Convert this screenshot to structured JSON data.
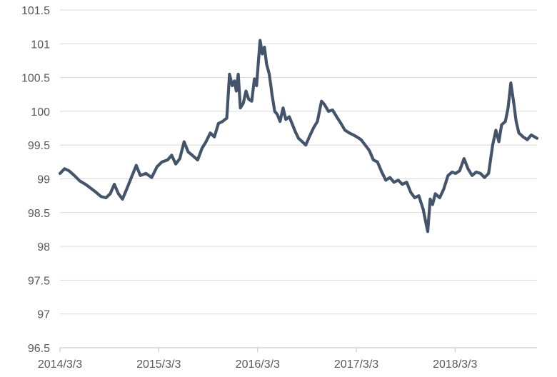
{
  "chart_data": {
    "type": "line",
    "title": "",
    "xlabel": "",
    "ylabel": "",
    "ylim": [
      96.5,
      101.5
    ],
    "y_ticks": [
      "96.5",
      "97",
      "97.5",
      "98",
      "98.5",
      "99",
      "99.5",
      "100",
      "100.5",
      "101",
      "101.5"
    ],
    "x_ticks": [
      {
        "label": "2014/3/3",
        "date": "2014-03-03"
      },
      {
        "label": "2015/3/3",
        "date": "2015-03-03"
      },
      {
        "label": "2016/3/3",
        "date": "2016-03-03"
      },
      {
        "label": "2017/3/3",
        "date": "2017-03-03"
      },
      {
        "label": "2018/3/3",
        "date": "2018-03-03"
      }
    ],
    "x_range": [
      "2014-03-03",
      "2018-12-31"
    ],
    "grid": "horizontal",
    "legend": "none",
    "colors": {
      "line": "#44546a",
      "grid": "#d9d9d9",
      "text": "#595959"
    },
    "series": [
      {
        "points": [
          [
            "2014-03-03",
            99.08
          ],
          [
            "2014-03-20",
            99.15
          ],
          [
            "2014-04-05",
            99.12
          ],
          [
            "2014-04-25",
            99.05
          ],
          [
            "2014-05-15",
            98.97
          ],
          [
            "2014-06-05",
            98.92
          ],
          [
            "2014-06-25",
            98.86
          ],
          [
            "2014-07-15",
            98.8
          ],
          [
            "2014-08-01",
            98.74
          ],
          [
            "2014-08-20",
            98.72
          ],
          [
            "2014-09-05",
            98.78
          ],
          [
            "2014-09-20",
            98.92
          ],
          [
            "2014-10-05",
            98.78
          ],
          [
            "2014-10-20",
            98.7
          ],
          [
            "2014-11-05",
            98.85
          ],
          [
            "2014-11-20",
            99.0
          ],
          [
            "2014-12-10",
            99.2
          ],
          [
            "2014-12-25",
            99.05
          ],
          [
            "2015-01-15",
            99.08
          ],
          [
            "2015-02-05",
            99.02
          ],
          [
            "2015-02-25",
            99.18
          ],
          [
            "2015-03-15",
            99.25
          ],
          [
            "2015-04-05",
            99.28
          ],
          [
            "2015-04-20",
            99.35
          ],
          [
            "2015-05-05",
            99.22
          ],
          [
            "2015-05-20",
            99.3
          ],
          [
            "2015-06-05",
            99.55
          ],
          [
            "2015-06-20",
            99.4
          ],
          [
            "2015-07-05",
            99.35
          ],
          [
            "2015-07-25",
            99.28
          ],
          [
            "2015-08-10",
            99.45
          ],
          [
            "2015-08-25",
            99.55
          ],
          [
            "2015-09-10",
            99.68
          ],
          [
            "2015-09-25",
            99.62
          ],
          [
            "2015-10-10",
            99.82
          ],
          [
            "2015-10-25",
            99.85
          ],
          [
            "2015-11-10",
            99.9
          ],
          [
            "2015-11-20",
            100.55
          ],
          [
            "2015-11-30",
            100.38
          ],
          [
            "2015-12-08",
            100.45
          ],
          [
            "2015-12-15",
            100.3
          ],
          [
            "2015-12-22",
            100.55
          ],
          [
            "2015-12-30",
            100.05
          ],
          [
            "2016-01-10",
            100.12
          ],
          [
            "2016-01-20",
            100.3
          ],
          [
            "2016-01-30",
            100.18
          ],
          [
            "2016-02-10",
            100.15
          ],
          [
            "2016-02-20",
            100.48
          ],
          [
            "2016-02-28",
            100.38
          ],
          [
            "2016-03-05",
            100.7
          ],
          [
            "2016-03-12",
            101.05
          ],
          [
            "2016-03-20",
            100.85
          ],
          [
            "2016-03-28",
            100.95
          ],
          [
            "2016-04-05",
            100.7
          ],
          [
            "2016-04-15",
            100.55
          ],
          [
            "2016-04-25",
            100.25
          ],
          [
            "2016-05-05",
            100.0
          ],
          [
            "2016-05-15",
            99.95
          ],
          [
            "2016-05-25",
            99.85
          ],
          [
            "2016-06-05",
            100.05
          ],
          [
            "2016-06-15",
            99.88
          ],
          [
            "2016-06-28",
            99.92
          ],
          [
            "2016-07-10",
            99.8
          ],
          [
            "2016-07-20",
            99.7
          ],
          [
            "2016-08-01",
            99.6
          ],
          [
            "2016-08-15",
            99.55
          ],
          [
            "2016-08-28",
            99.5
          ],
          [
            "2016-09-10",
            99.62
          ],
          [
            "2016-09-25",
            99.75
          ],
          [
            "2016-10-10",
            99.85
          ],
          [
            "2016-10-25",
            100.15
          ],
          [
            "2016-11-05",
            100.1
          ],
          [
            "2016-11-20",
            100.0
          ],
          [
            "2016-12-05",
            100.02
          ],
          [
            "2016-12-20",
            99.92
          ],
          [
            "2017-01-05",
            99.82
          ],
          [
            "2017-01-20",
            99.72
          ],
          [
            "2017-02-05",
            99.68
          ],
          [
            "2017-02-20",
            99.65
          ],
          [
            "2017-03-05",
            99.62
          ],
          [
            "2017-03-20",
            99.58
          ],
          [
            "2017-04-05",
            99.5
          ],
          [
            "2017-04-20",
            99.42
          ],
          [
            "2017-05-05",
            99.28
          ],
          [
            "2017-05-20",
            99.25
          ],
          [
            "2017-06-05",
            99.1
          ],
          [
            "2017-06-20",
            98.98
          ],
          [
            "2017-07-05",
            99.02
          ],
          [
            "2017-07-20",
            98.95
          ],
          [
            "2017-08-05",
            98.98
          ],
          [
            "2017-08-20",
            98.92
          ],
          [
            "2017-09-05",
            98.95
          ],
          [
            "2017-09-20",
            98.8
          ],
          [
            "2017-10-05",
            98.72
          ],
          [
            "2017-10-20",
            98.75
          ],
          [
            "2017-11-05",
            98.55
          ],
          [
            "2017-11-15",
            98.35
          ],
          [
            "2017-11-22",
            98.22
          ],
          [
            "2017-12-01",
            98.7
          ],
          [
            "2017-12-10",
            98.62
          ],
          [
            "2017-12-20",
            98.78
          ],
          [
            "2018-01-05",
            98.72
          ],
          [
            "2018-01-20",
            98.85
          ],
          [
            "2018-02-05",
            99.05
          ],
          [
            "2018-02-20",
            99.1
          ],
          [
            "2018-03-05",
            99.08
          ],
          [
            "2018-03-20",
            99.12
          ],
          [
            "2018-04-05",
            99.3
          ],
          [
            "2018-04-20",
            99.15
          ],
          [
            "2018-05-05",
            99.05
          ],
          [
            "2018-05-20",
            99.1
          ],
          [
            "2018-06-05",
            99.08
          ],
          [
            "2018-06-20",
            99.02
          ],
          [
            "2018-07-05",
            99.08
          ],
          [
            "2018-07-20",
            99.5
          ],
          [
            "2018-08-01",
            99.72
          ],
          [
            "2018-08-12",
            99.55
          ],
          [
            "2018-08-22",
            99.8
          ],
          [
            "2018-09-05",
            99.85
          ],
          [
            "2018-09-15",
            100.05
          ],
          [
            "2018-09-25",
            100.42
          ],
          [
            "2018-10-05",
            100.15
          ],
          [
            "2018-10-15",
            99.85
          ],
          [
            "2018-10-25",
            99.68
          ],
          [
            "2018-11-10",
            99.62
          ],
          [
            "2018-11-25",
            99.58
          ],
          [
            "2018-12-10",
            99.65
          ],
          [
            "2018-12-31",
            99.6
          ]
        ]
      }
    ]
  }
}
